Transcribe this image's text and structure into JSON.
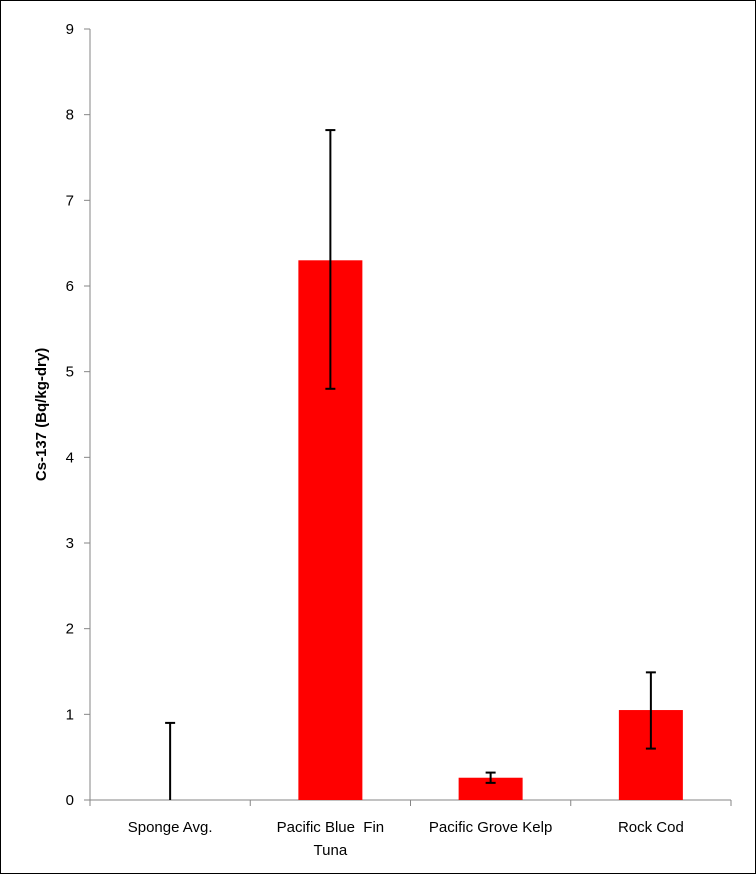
{
  "chart_data": {
    "type": "bar",
    "title": "",
    "xlabel": "",
    "ylabel": "Cs-137 (Bq/kg-dry)",
    "ylim": [
      0,
      9
    ],
    "yticks": [
      0,
      1,
      2,
      3,
      4,
      5,
      6,
      7,
      8,
      9
    ],
    "categories": [
      [
        "Sponge Avg."
      ],
      [
        "Pacific Blue  Fin",
        "Tuna"
      ],
      [
        "Pacific Grove Kelp"
      ],
      [
        "Rock Cod"
      ]
    ],
    "series": [
      {
        "values": [
          0,
          6.3,
          0.26,
          1.05
        ],
        "error_low": [
          0,
          1.5,
          0.06,
          0.45
        ],
        "error_high": [
          0.9,
          1.52,
          0.06,
          0.44
        ],
        "color": "#ff0000"
      }
    ],
    "grid": false,
    "legend": "none"
  }
}
